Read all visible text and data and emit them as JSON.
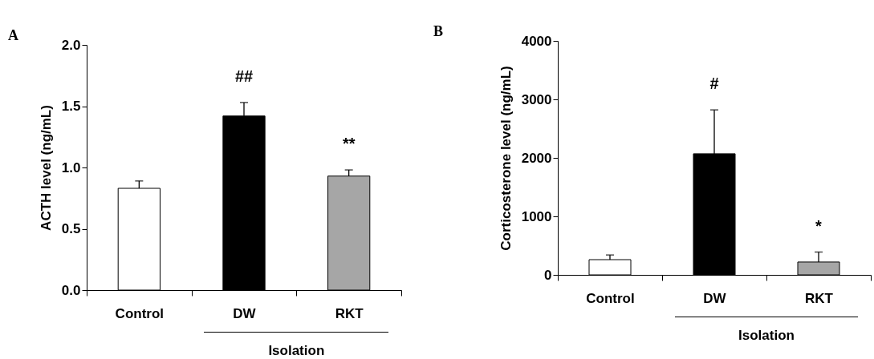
{
  "chart_data": [
    {
      "type": "bar",
      "title": "A",
      "ylabel": "ACTH level (ng/mL)",
      "categories": [
        "Control",
        "DW",
        "RKT"
      ],
      "values": [
        0.83,
        1.42,
        0.93
      ],
      "colors": [
        "#ffffff",
        "#000000",
        "#a6a6a6"
      ],
      "errors": [
        [
          0.83,
          0.89
        ],
        [
          1.42,
          1.53
        ],
        [
          0.93,
          0.98
        ]
      ],
      "ylim": [
        0,
        2
      ],
      "yticks": [
        {
          "value": 0,
          "label": "0.0"
        },
        {
          "value": 0.5,
          "label": "0.5"
        },
        {
          "value": 1,
          "label": "1.0"
        },
        {
          "value": 1.5,
          "label": "1.5"
        },
        {
          "value": 2,
          "label": "2.0"
        }
      ],
      "grid": false,
      "annotations": [
        "##",
        "**",
        "Isolation"
      ]
    },
    {
      "type": "bar",
      "title": "B",
      "ylabel": "Corticosterone level (ng/mL)",
      "categories": [
        "Control",
        "DW",
        "RKT"
      ],
      "values": [
        260,
        2070,
        220
      ],
      "colors": [
        "#ffffff",
        "#000000",
        "#a6a6a6"
      ],
      "errors": [
        [
          260,
          340
        ],
        [
          2070,
          2820
        ],
        [
          220,
          390
        ]
      ],
      "ylim": [
        0,
        4000
      ],
      "yticks": [
        0,
        1000,
        2000,
        3000,
        4000
      ],
      "grid": false,
      "annotations": [
        "#",
        "*",
        "Isolation"
      ]
    }
  ]
}
